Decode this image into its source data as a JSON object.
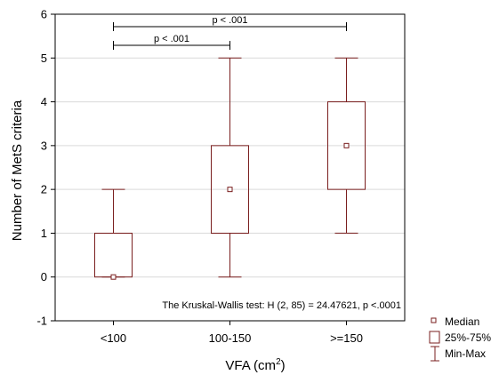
{
  "chart_data": {
    "type": "box",
    "ylabel": "Number of MetS criteria",
    "xlabel": "VFA (cm",
    "xlabel_sup": "2",
    "xlabel_end": ")",
    "ylim": [
      -1,
      6
    ],
    "yticks": [
      -1,
      0,
      1,
      2,
      3,
      4,
      5,
      6
    ],
    "grid": "horizontal",
    "categories": [
      "<100",
      "100-150",
      ">=150"
    ],
    "boxes": [
      {
        "min": 0,
        "q1": 0,
        "median": 0,
        "q3": 1,
        "max": 2
      },
      {
        "min": 0,
        "q1": 1,
        "median": 2,
        "q3": 3,
        "max": 5
      },
      {
        "min": 1,
        "q1": 2,
        "median": 3,
        "q3": 4,
        "max": 5
      }
    ],
    "comparisons": [
      {
        "from": 0,
        "to": 1,
        "label": "p < .001"
      },
      {
        "from": 0,
        "to": 2,
        "label": "p < .001"
      }
    ],
    "annotation": "The Kruskal-Wallis test: H (2, 85) = 24.47621, p <.0001",
    "legend": {
      "placement": "outside-bottom-right",
      "entries": [
        "Median",
        "25%-75%",
        "Min-Max"
      ]
    },
    "colors": {
      "box": "#7a1f1f",
      "axis": "#000000",
      "grid": "#d9d9d9"
    }
  }
}
